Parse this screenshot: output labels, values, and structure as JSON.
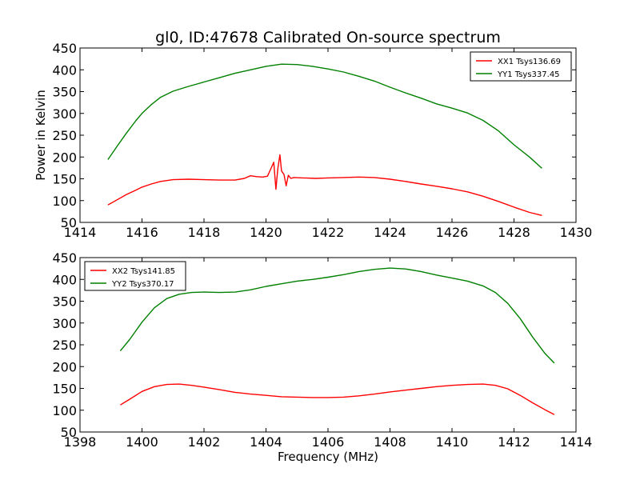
{
  "figure": {
    "title": "gl0, ID:47678 Calibrated On-source spectrum",
    "xlabel": "Frequency (MHz)",
    "ylabel": "Power in Kelvin"
  },
  "chart_data": [
    {
      "type": "line",
      "title": "gl0, ID:47678 Calibrated On-source spectrum",
      "xlabel": "",
      "ylabel": "Power in Kelvin",
      "xlim": [
        1414,
        1430
      ],
      "ylim": [
        50,
        450
      ],
      "xticks": [
        "1414",
        "1416",
        "1418",
        "1420",
        "1422",
        "1424",
        "1426",
        "1428",
        "1430"
      ],
      "yticks": [
        "50",
        "100",
        "150",
        "200",
        "250",
        "300",
        "350",
        "400",
        "450"
      ],
      "legend_position": "top-right",
      "series": [
        {
          "name": "XX1 Tsys136.69",
          "color": "#ff0000",
          "x": [
            1414.9,
            1415.2,
            1415.5,
            1415.8,
            1416.0,
            1416.3,
            1416.6,
            1417.0,
            1417.5,
            1418.0,
            1418.5,
            1419.0,
            1419.3,
            1419.5,
            1419.7,
            1419.9,
            1420.05,
            1420.15,
            1420.25,
            1420.32,
            1420.38,
            1420.45,
            1420.5,
            1420.58,
            1420.65,
            1420.72,
            1420.8,
            1420.9,
            1421.2,
            1421.6,
            1422.0,
            1422.5,
            1423.0,
            1423.5,
            1424.0,
            1424.5,
            1425.0,
            1425.5,
            1426.0,
            1426.5,
            1427.0,
            1427.5,
            1428.0,
            1428.5,
            1428.9
          ],
          "values": [
            90,
            102,
            114,
            124,
            131,
            138,
            144,
            148,
            149,
            148,
            147,
            147,
            151,
            157,
            155,
            154,
            156,
            172,
            188,
            126,
            172,
            205,
            168,
            160,
            134,
            158,
            151,
            153,
            152,
            151,
            152,
            153,
            154,
            153,
            149,
            144,
            138,
            133,
            127,
            120,
            110,
            98,
            85,
            73,
            66
          ]
        },
        {
          "name": "YY1 Tsys337.45",
          "color": "#008000",
          "x": [
            1414.9,
            1415.2,
            1415.5,
            1415.8,
            1416.0,
            1416.3,
            1416.6,
            1417.0,
            1417.5,
            1418.0,
            1418.5,
            1419.0,
            1419.5,
            1420.0,
            1420.5,
            1421.0,
            1421.5,
            1422.0,
            1422.5,
            1423.0,
            1423.5,
            1424.0,
            1424.5,
            1425.0,
            1425.5,
            1426.0,
            1426.5,
            1427.0,
            1427.5,
            1428.0,
            1428.5,
            1428.9
          ],
          "values": [
            194,
            225,
            255,
            283,
            300,
            320,
            337,
            351,
            362,
            372,
            382,
            392,
            400,
            408,
            413,
            412,
            408,
            402,
            395,
            385,
            374,
            360,
            347,
            335,
            322,
            312,
            301,
            284,
            260,
            228,
            200,
            174
          ]
        }
      ]
    },
    {
      "type": "line",
      "title": "",
      "xlabel": "Frequency (MHz)",
      "ylabel": "",
      "xlim": [
        1398,
        1414
      ],
      "ylim": [
        50,
        450
      ],
      "xticks": [
        "1398",
        "1400",
        "1402",
        "1404",
        "1406",
        "1408",
        "1410",
        "1412",
        "1414"
      ],
      "yticks": [
        "50",
        "100",
        "150",
        "200",
        "250",
        "300",
        "350",
        "400",
        "450"
      ],
      "legend_position": "top-left",
      "series": [
        {
          "name": "XX2 Tsys141.85",
          "color": "#ff0000",
          "x": [
            1399.3,
            1399.6,
            1400.0,
            1400.4,
            1400.8,
            1401.2,
            1401.6,
            1402.0,
            1402.5,
            1403.0,
            1403.5,
            1404.0,
            1404.5,
            1405.0,
            1405.5,
            1406.0,
            1406.5,
            1407.0,
            1407.5,
            1408.0,
            1408.5,
            1409.0,
            1409.5,
            1410.0,
            1410.5,
            1411.0,
            1411.4,
            1411.8,
            1412.2,
            1412.6,
            1413.0,
            1413.3
          ],
          "values": [
            112,
            125,
            143,
            154,
            159,
            160,
            157,
            153,
            147,
            141,
            137,
            134,
            131,
            130,
            129,
            129,
            130,
            133,
            137,
            142,
            146,
            150,
            154,
            157,
            159,
            160,
            157,
            149,
            134,
            117,
            101,
            90
          ]
        },
        {
          "name": "YY2 Tsys370.17",
          "color": "#008000",
          "x": [
            1399.3,
            1399.6,
            1400.0,
            1400.4,
            1400.8,
            1401.2,
            1401.6,
            1402.0,
            1402.5,
            1403.0,
            1403.5,
            1404.0,
            1404.5,
            1405.0,
            1405.5,
            1406.0,
            1406.5,
            1407.0,
            1407.5,
            1408.0,
            1408.5,
            1409.0,
            1409.5,
            1410.0,
            1410.5,
            1411.0,
            1411.4,
            1411.8,
            1412.2,
            1412.6,
            1413.0,
            1413.3
          ],
          "values": [
            236,
            262,
            302,
            335,
            356,
            366,
            370,
            371,
            370,
            371,
            376,
            384,
            390,
            396,
            400,
            405,
            411,
            418,
            423,
            426,
            424,
            418,
            410,
            403,
            396,
            385,
            370,
            345,
            310,
            268,
            230,
            208
          ]
        }
      ]
    }
  ]
}
